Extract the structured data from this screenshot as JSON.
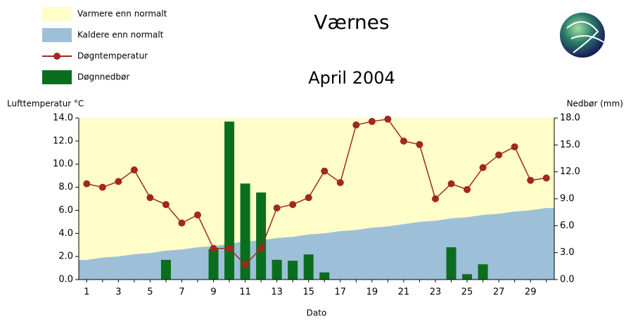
{
  "chart_data": {
    "type": "combo",
    "title": "Værnes",
    "subtitle": "April 2004",
    "ylabel": "Lufttemperatur °C",
    "y2label": "Nedbør (mm)",
    "xlabel": "Dato",
    "background": {
      "name": "Varmere enn normalt",
      "color": "#fffdc8"
    },
    "categories": [
      "1",
      null,
      "3",
      null,
      "5",
      null,
      "7",
      null,
      "9",
      null,
      "11",
      null,
      "13",
      null,
      "15",
      null,
      "17",
      null,
      "19",
      null,
      "21",
      null,
      "23",
      null,
      "25",
      null,
      "27",
      null,
      "29",
      null
    ],
    "series": [
      {
        "name": "Kaldere enn normalt",
        "type": "area",
        "color": "#9dbfd8",
        "values": [
          1.7,
          1.9,
          2.0,
          2.2,
          2.3,
          2.5,
          2.6,
          2.8,
          2.9,
          3.1,
          3.3,
          3.4,
          3.6,
          3.7,
          3.9,
          4.0,
          4.2,
          4.3,
          4.5,
          4.6,
          4.8,
          5.0,
          5.1,
          5.3,
          5.4,
          5.6,
          5.7,
          5.9,
          6.0,
          6.2
        ]
      },
      {
        "name": "Døgntemperatur",
        "type": "line",
        "color": "#a0281e",
        "values": [
          8.3,
          8.0,
          8.5,
          9.5,
          7.1,
          6.5,
          4.9,
          5.6,
          2.7,
          2.7,
          1.3,
          2.7,
          6.2,
          6.5,
          7.1,
          9.4,
          8.4,
          13.4,
          13.7,
          13.9,
          12.0,
          11.7,
          7.0,
          8.3,
          7.8,
          9.7,
          10.8,
          11.5,
          8.6,
          8.8
        ]
      },
      {
        "name": "Døgnnedbør",
        "type": "bar",
        "axis": "y2",
        "color": "#0a6e1e",
        "values": [
          0,
          0,
          0,
          0,
          0,
          2.2,
          0,
          0,
          3.4,
          17.6,
          10.7,
          9.7,
          2.2,
          2.1,
          2.8,
          0.8,
          0,
          0,
          0,
          0,
          0,
          0,
          0,
          3.6,
          0.6,
          1.7,
          0,
          0,
          0,
          0
        ]
      }
    ],
    "ylim": [
      0,
      14
    ],
    "yticks": [
      {
        "value": 0,
        "label": "0.0"
      },
      {
        "value": 2,
        "label": "2.0"
      },
      {
        "value": 4,
        "label": "4.0"
      },
      {
        "value": 6,
        "label": "6.0"
      },
      {
        "value": 8,
        "label": "8.0"
      },
      {
        "value": 10,
        "label": "10.0"
      },
      {
        "value": 12,
        "label": "12.0"
      },
      {
        "value": 14,
        "label": "14.0"
      }
    ],
    "y2lim": [
      0,
      18
    ],
    "y2ticks": [
      {
        "value": 0,
        "label": "0.0"
      },
      {
        "value": 3,
        "label": "3.0"
      },
      {
        "value": 6,
        "label": "6.0"
      },
      {
        "value": 9,
        "label": "9.0"
      },
      {
        "value": 12,
        "label": "12.0"
      },
      {
        "value": 15,
        "label": "15.0"
      },
      {
        "value": 18,
        "label": "18.0"
      }
    ]
  }
}
